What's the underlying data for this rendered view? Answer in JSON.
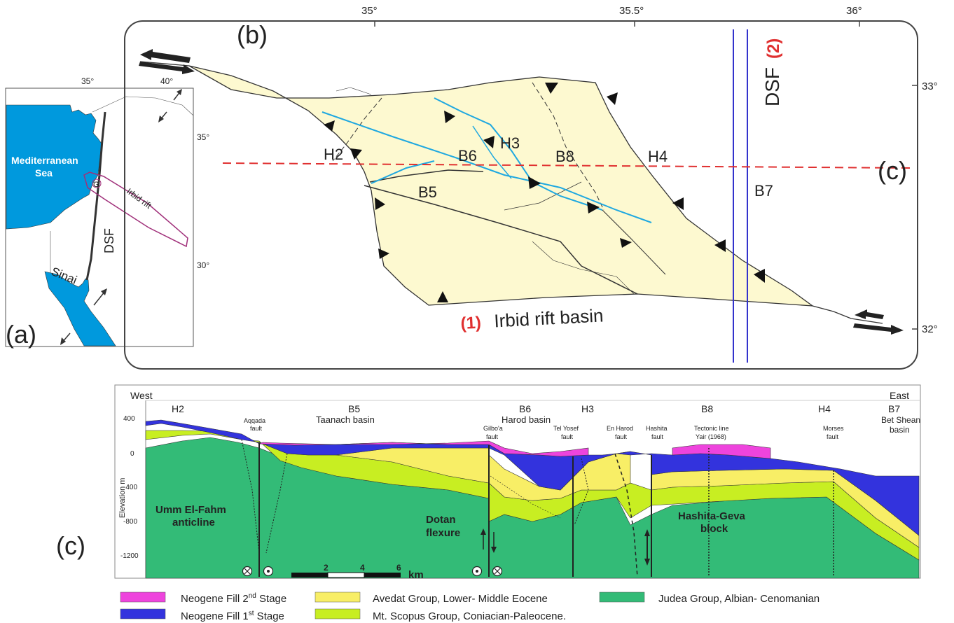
{
  "panel_a": {
    "tag": "(a)",
    "lon_labels": [
      "35°",
      "40°"
    ],
    "lat_labels": [
      "35°",
      "30°"
    ],
    "sea_label_1": "Mediterranean",
    "sea_label_2": "Sea",
    "rift_label": "Irbid rift",
    "fault_label": "DSF",
    "g_label": "G",
    "sinai_label": "Sinai",
    "colors": {
      "sea": "#0099dd",
      "rift": "#a0307a"
    }
  },
  "panel_b": {
    "tag": "(b)",
    "lon_labels": [
      "35°",
      "35.5°",
      "36°"
    ],
    "lat_labels": [
      "33°",
      "32°"
    ],
    "basin_labels": {
      "h2": "H2",
      "b6": "B6",
      "h3": "H3",
      "b8": "B8",
      "h4": "H4",
      "b5": "B5",
      "b7": "B7"
    },
    "basin_number": "(1)",
    "basin_title": "Irbid rift basin",
    "dsf_label": "DSF",
    "dsf_number": "(2)",
    "section_tag": "(c)",
    "colors": {
      "basin_fill": "#fdf9d0",
      "fault_blue": "#1fa8e0",
      "dsf": "#3333cc",
      "section": "#e03030",
      "red_label": "#e03030"
    }
  },
  "panel_c": {
    "tag": "(c)",
    "west": "West",
    "east": "East",
    "ylabel": "Elevation m",
    "y_ticks": [
      "400",
      "0",
      "-400",
      "-800",
      "-1200"
    ],
    "top_labels": {
      "h2": "H2",
      "b5": "B5",
      "b5_name": "Taanach basin",
      "b6": "B6",
      "b6_name": "Harod basin",
      "h3": "H3",
      "b8": "B8",
      "h4": "H4",
      "b7": "B7",
      "b7_name_1": "Bet Shean",
      "b7_name_2": "basin"
    },
    "faults": {
      "aqqada_1": "Aqqada",
      "aqqada_2": "fault",
      "gilboa_1": "Gilbo'a",
      "gilboa_2": "fault",
      "telyosef_1": "Tel Yosef",
      "telyosef_2": "fault",
      "enharod_1": "En Harod",
      "enharod_2": "fault",
      "hashita_1": "Hashita",
      "hashita_2": "fault",
      "tectonic_1": "Tectonic line",
      "tectonic_2": "Yair (1968)",
      "morses_1": "Morses",
      "morses_2": "fault"
    },
    "structures": {
      "umm_1": "Umm El-Fahm",
      "umm_2": "anticline",
      "dotan_1": "Dotan",
      "dotan_2": "flexure",
      "hashita_1": "Hashita-Geva",
      "hashita_2": "block"
    },
    "scale": {
      "t2": "2",
      "t4": "4",
      "t6": "6",
      "unit": "km"
    }
  },
  "legend": [
    {
      "label_main": "Neogene Fill 2",
      "label_sup": "nd",
      "label_end": " Stage",
      "color": "#ee44dd"
    },
    {
      "label_main": "Neogene Fill 1",
      "label_sup": "st",
      "label_end": " Stage",
      "color": "#3333dd"
    },
    {
      "label_main": "Avedat Group, Lower- Middle Eocene",
      "color": "#f8ee66"
    },
    {
      "label_main": "Mt. Scopus Group, Coniacian-Paleocene.",
      "color": "#c8ee22"
    },
    {
      "label_main": "Judea Group, Albian- Cenomanian",
      "color": "#33bb77"
    }
  ]
}
